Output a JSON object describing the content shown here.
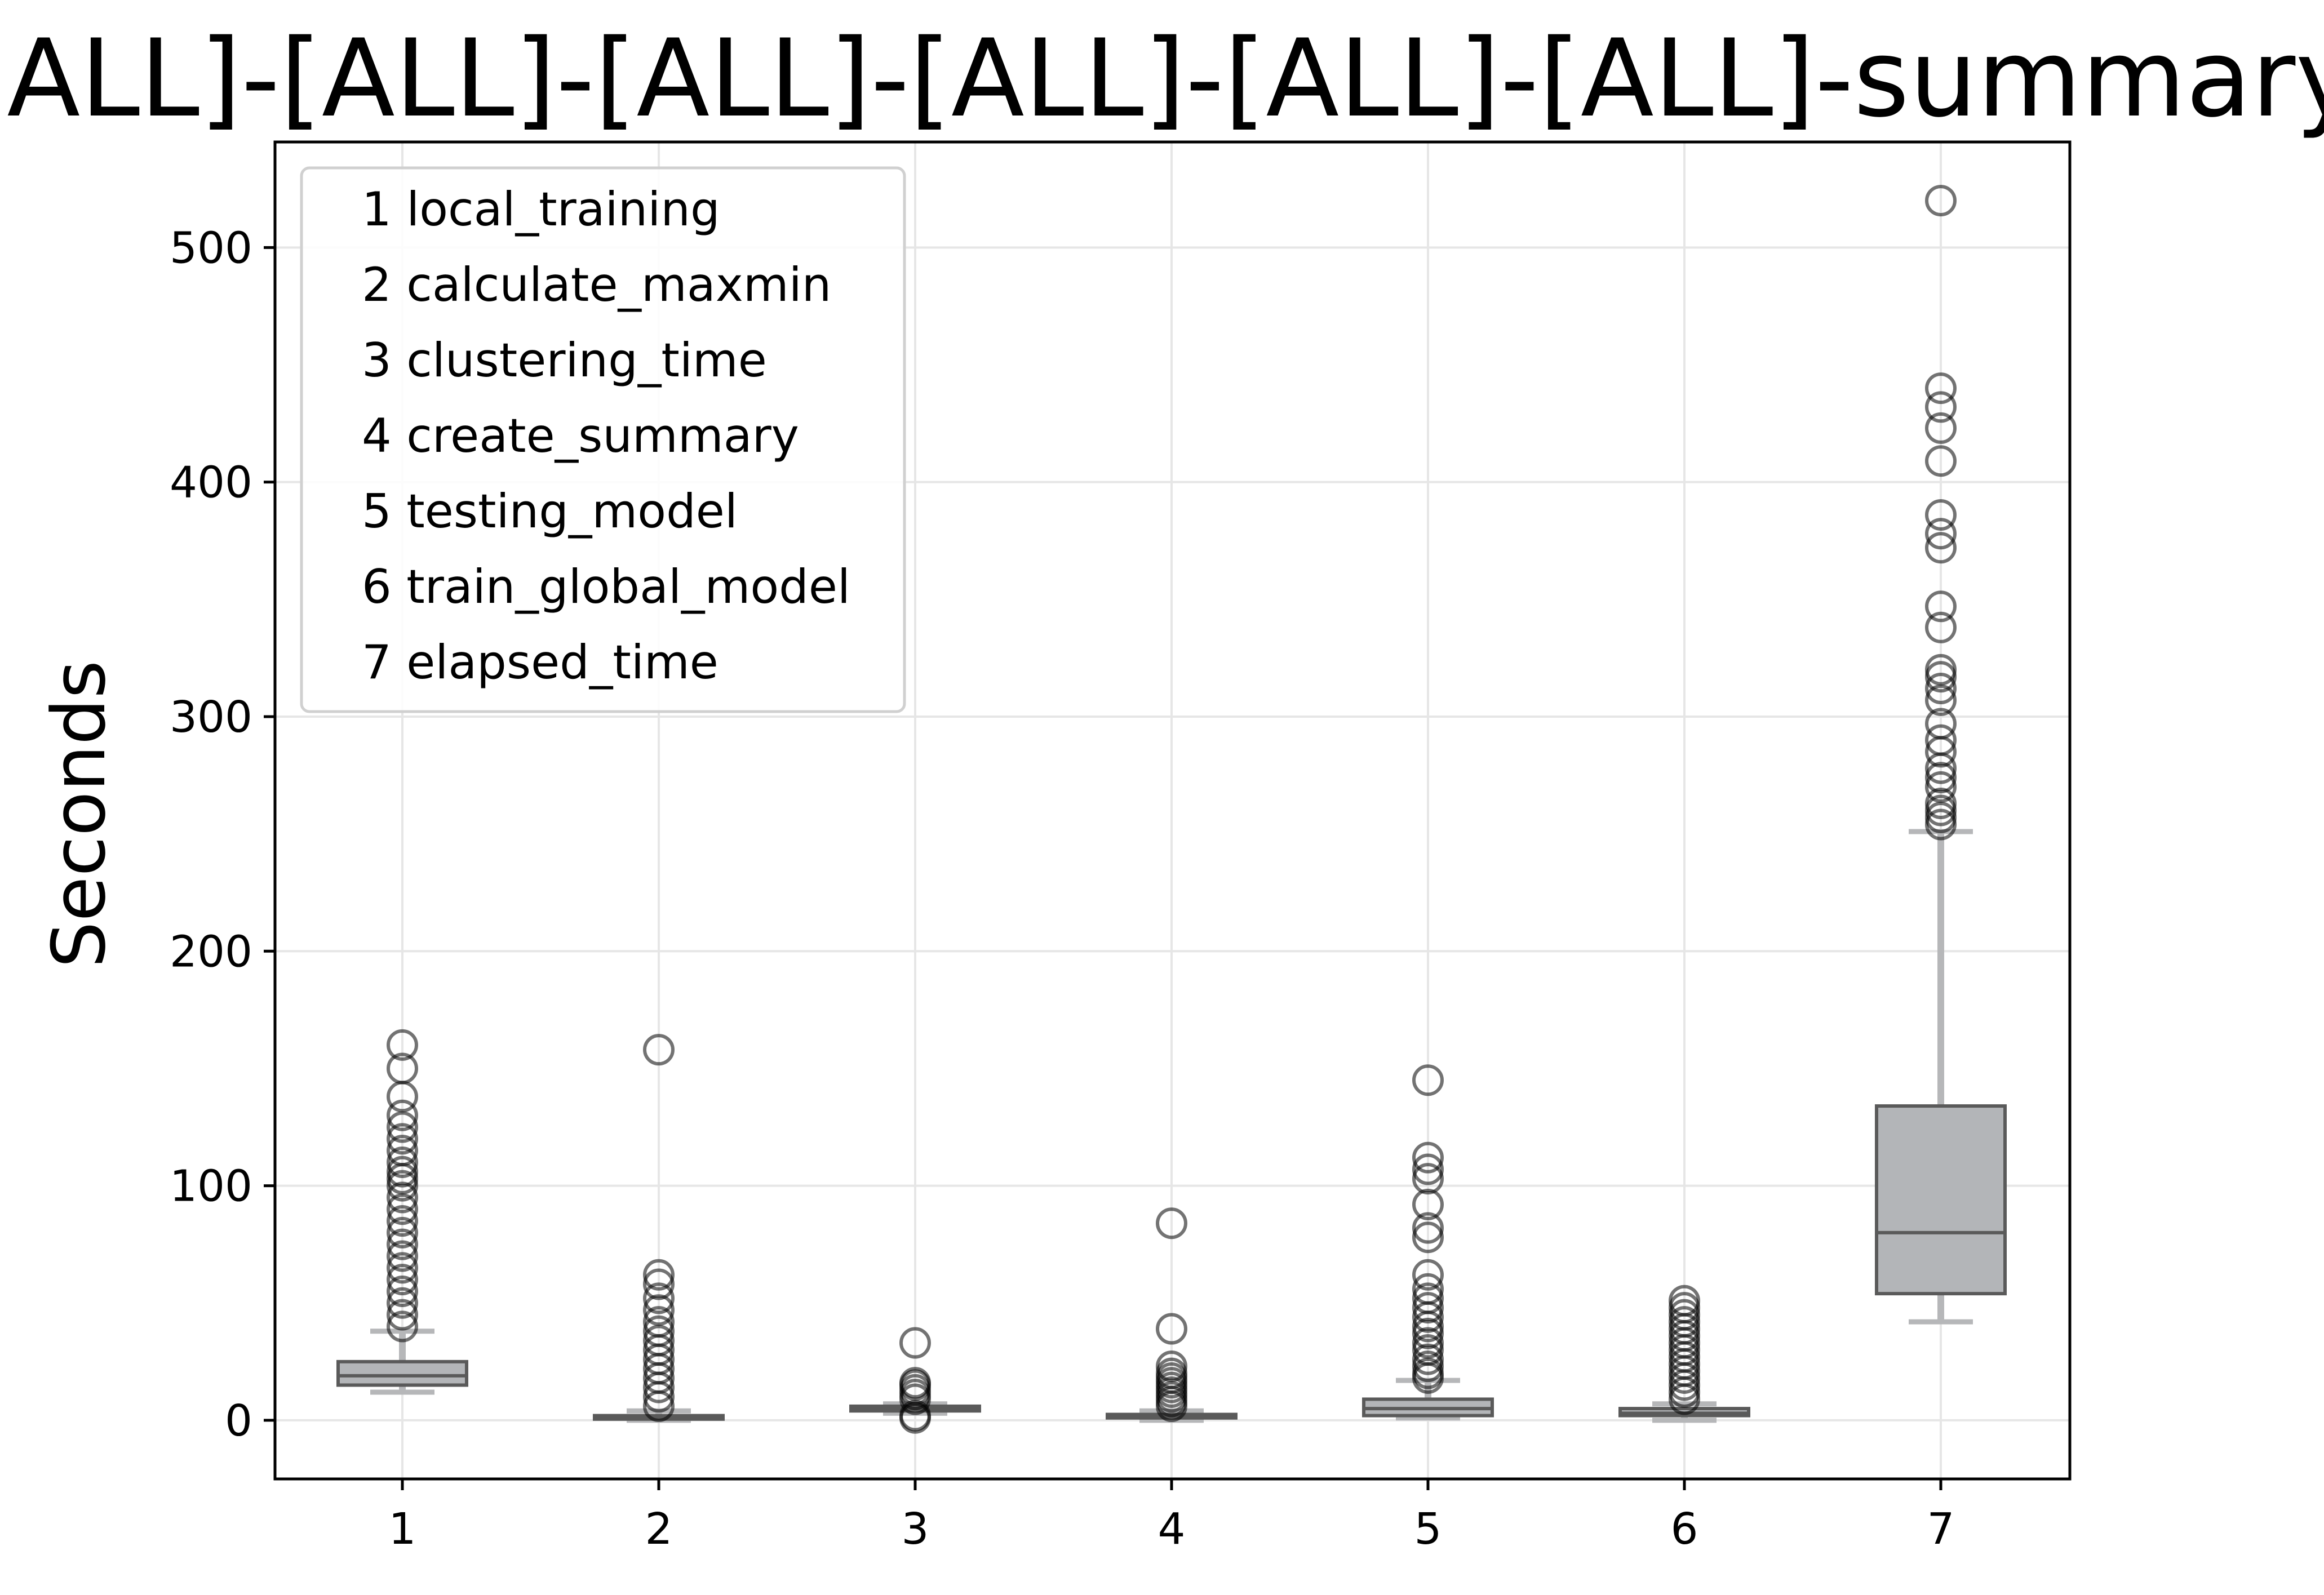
{
  "chart_data": {
    "type": "box",
    "title": "[ALL]-[ALL]-[ALL]-[ALL]-[ALL]-[ALL]-summary",
    "xlabel": "",
    "ylabel": "Seconds",
    "ylim": [
      -25,
      545
    ],
    "yticks": [
      0,
      100,
      200,
      300,
      400,
      500
    ],
    "categories": [
      "1",
      "2",
      "3",
      "4",
      "5",
      "6",
      "7"
    ],
    "grid": true,
    "legend_position": "top-left",
    "legend": [
      "1 local_training",
      "2 calculate_maxmin",
      "3 clustering_time",
      "4 create_summary",
      "5 testing_model",
      "6 train_global_model",
      "7 elapsed_time"
    ],
    "colors": {
      "box_fill": "#b3b5b8",
      "box_edge": "#5a5a5a",
      "whisker": "#b6b7b9",
      "outlier_edge": "#000000",
      "grid": "#e6e6e6"
    },
    "boxes": [
      {
        "category": "1",
        "whisker_low": 12,
        "q1": 15,
        "median": 19,
        "q3": 25,
        "whisker_high": 38,
        "outliers": [
          40,
          45,
          50,
          55,
          60,
          65,
          70,
          75,
          80,
          85,
          90,
          95,
          100,
          103,
          106,
          110,
          115,
          120,
          125,
          130,
          138,
          150,
          160
        ]
      },
      {
        "category": "2",
        "whisker_low": 0,
        "q1": 0.5,
        "median": 1,
        "q3": 2,
        "whisker_high": 4,
        "outliers": [
          6,
          10,
          14,
          18,
          22,
          26,
          30,
          34,
          38,
          42,
          47,
          52,
          58,
          62,
          158
        ]
      },
      {
        "category": "3",
        "whisker_low": 3,
        "q1": 4,
        "median": 5,
        "q3": 6,
        "whisker_high": 7,
        "outliers": [
          1,
          2,
          9,
          11,
          13,
          15,
          16,
          33
        ]
      },
      {
        "category": "4",
        "whisker_low": 0,
        "q1": 1,
        "median": 1.5,
        "q3": 2.5,
        "whisker_high": 4,
        "outliers": [
          6,
          8,
          10,
          12,
          14,
          16,
          18,
          20,
          23,
          39,
          84
        ]
      },
      {
        "category": "5",
        "whisker_low": 1,
        "q1": 2,
        "median": 5,
        "q3": 9,
        "whisker_high": 17,
        "outliers": [
          18,
          20,
          23,
          26,
          30,
          33,
          37,
          40,
          44,
          48,
          52,
          56,
          62,
          78,
          82,
          92,
          103,
          107,
          112,
          145
        ]
      },
      {
        "category": "6",
        "whisker_low": 0,
        "q1": 2,
        "median": 3,
        "q3": 5,
        "whisker_high": 7,
        "outliers": [
          9,
          12,
          15,
          18,
          21,
          24,
          27,
          30,
          33,
          36,
          39,
          42,
          45,
          48,
          51
        ]
      },
      {
        "category": "7",
        "whisker_low": 42,
        "q1": 54,
        "median": 80,
        "q3": 134,
        "whisker_high": 251,
        "outliers": [
          254,
          257,
          260,
          263,
          270,
          274,
          278,
          285,
          290,
          297,
          307,
          312,
          317,
          320,
          338,
          347,
          372,
          378,
          386,
          409,
          423,
          432,
          440,
          520
        ]
      }
    ]
  }
}
